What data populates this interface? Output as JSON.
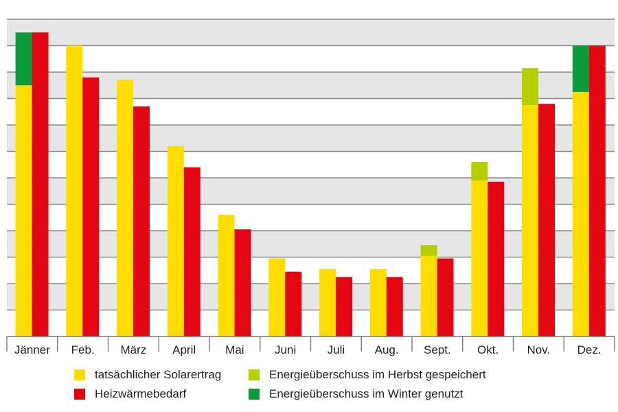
{
  "chart_data": {
    "type": "bar",
    "categories": [
      "Jänner",
      "Feb.",
      "März",
      "April",
      "Mai",
      "Juni",
      "Juli",
      "Aug.",
      "Sept.",
      "Okt.",
      "Nov.",
      "Dez."
    ],
    "ylim": [
      0,
      12
    ],
    "grid": true,
    "legend_position": "bottom",
    "series": [
      {
        "name": "tatsächlicher Solarertrag",
        "color": "#FFDD00",
        "stack": "solar",
        "values": [
          9.5,
          11,
          9.7,
          7.2,
          4.6,
          2.95,
          2.55,
          2.55,
          3.05,
          5.9,
          8.75,
          9.25
        ]
      },
      {
        "name": "Energieüberschuss im Herbst gespeichert",
        "color": "#B5CE00",
        "stack": "solar",
        "values": [
          0,
          0,
          0,
          0,
          0,
          0,
          0,
          0,
          0.4,
          0.7,
          1.4,
          0
        ]
      },
      {
        "name": "Energieüberschuss im Winter genutzt",
        "color": "#0C9B3B",
        "stack": "solar",
        "values": [
          2.0,
          0,
          0,
          0,
          0,
          0,
          0,
          0,
          0,
          0,
          0,
          1.75
        ]
      },
      {
        "name": "Heizwärmebedarf",
        "color": "#E30613",
        "stack": "demand",
        "values": [
          11.5,
          9.8,
          8.7,
          6.4,
          4.05,
          2.45,
          2.25,
          2.25,
          2.95,
          5.85,
          8.8,
          11
        ]
      }
    ]
  },
  "legend": [
    {
      "label": "tatsächlicher Solarertrag",
      "color": "#FFDD00"
    },
    {
      "label": "Heizwärmebedarf",
      "color": "#E30613"
    },
    {
      "label": "Energieüberschuss im Herbst gespeichert",
      "color": "#B5CE00"
    },
    {
      "label": "Energieüberschuss im Winter genutzt",
      "color": "#0C9B3B"
    }
  ]
}
